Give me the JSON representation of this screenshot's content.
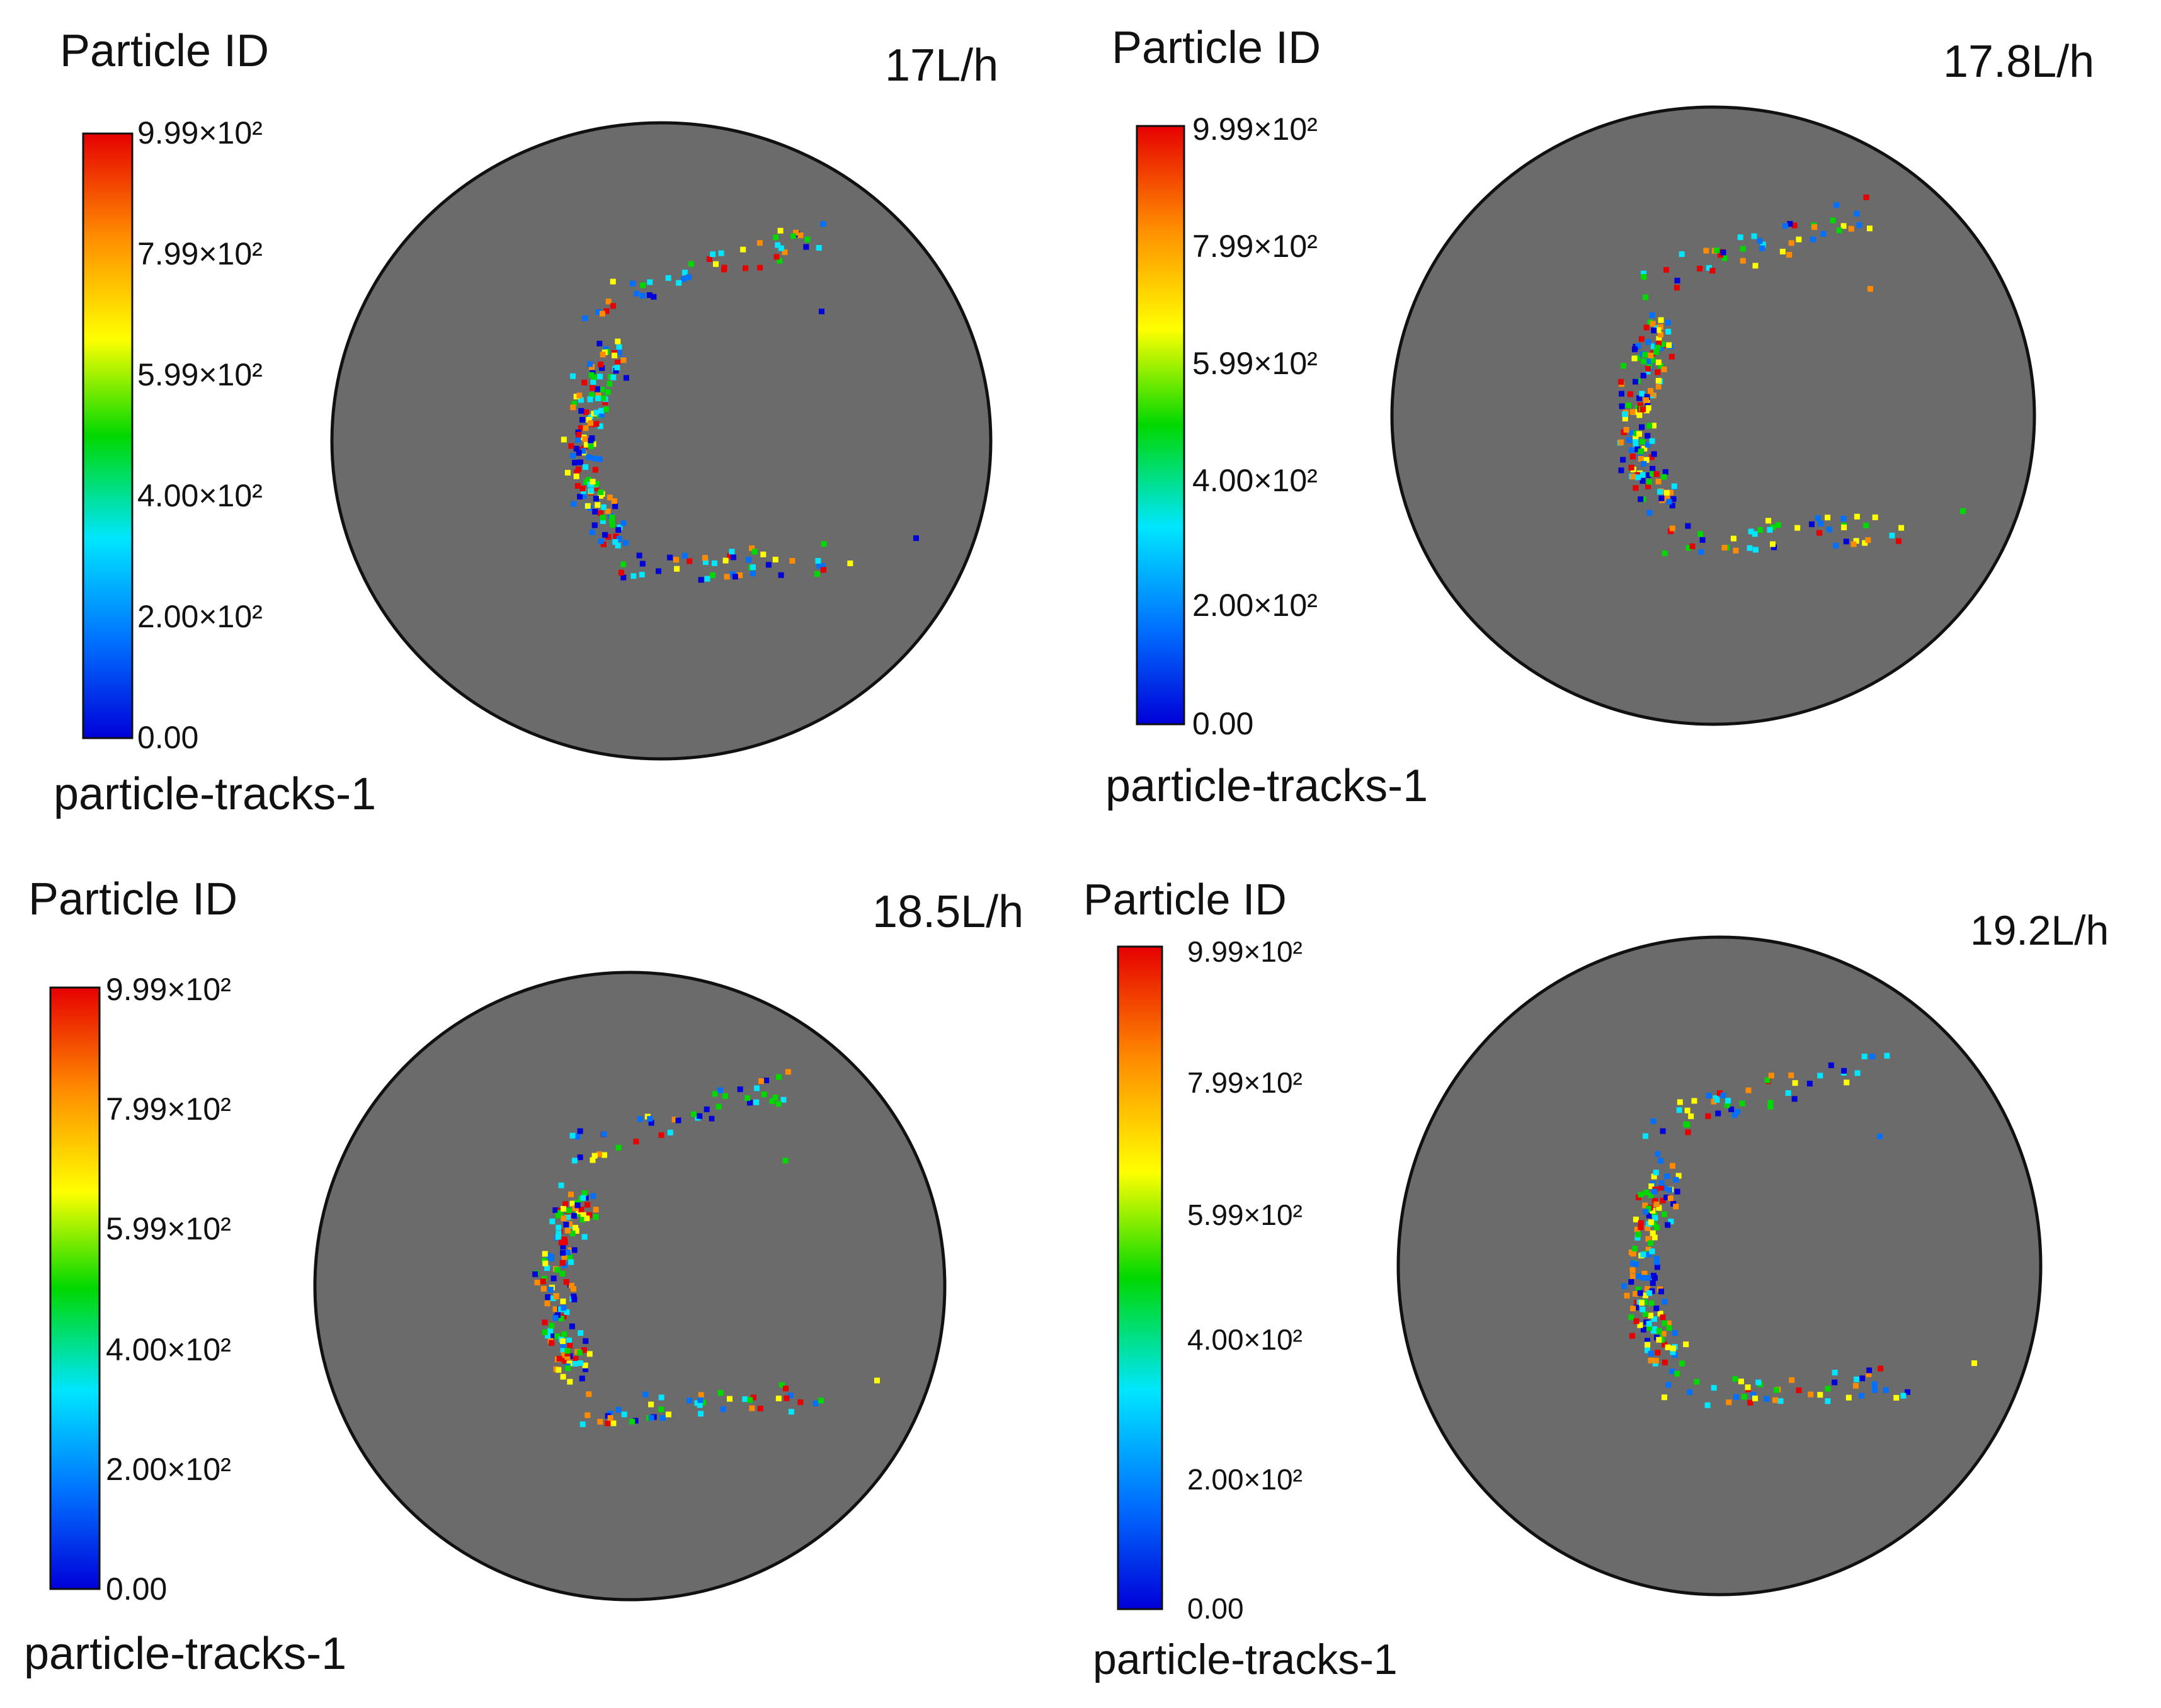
{
  "panels": [
    {
      "title": "Particle ID",
      "flow_label": "17L/h",
      "colorbar_ticks": [
        "9.99×10²",
        "7.99×10²",
        "5.99×10²",
        "4.00×10²",
        "2.00×10²",
        "0.00"
      ],
      "footer": "particle-tracks-1"
    },
    {
      "title": "Particle ID",
      "flow_label": "17.8L/h",
      "colorbar_ticks": [
        "9.99×10²",
        "7.99×10²",
        "5.99×10²",
        "4.00×10²",
        "2.00×10²",
        "0.00"
      ],
      "footer": "particle-tracks-1"
    },
    {
      "title": "Particle ID",
      "flow_label": "18.5L/h",
      "colorbar_ticks": [
        "9.99×10²",
        "7.99×10²",
        "5.99×10²",
        "4.00×10²",
        "2.00×10²",
        "0.00"
      ],
      "footer": "particle-tracks-1"
    },
    {
      "title": "Particle ID",
      "flow_label": "19.2L/h",
      "colorbar_ticks": [
        "9.99×10²",
        "7.99×10²",
        "5.99×10²",
        "4.00×10²",
        "2.00×10²",
        "0.00"
      ],
      "footer": "particle-tracks-1"
    }
  ],
  "colors": {
    "disc_fill": "#6b6b6b",
    "disc_stroke": "#111111",
    "colormap": [
      "#0000d8",
      "#0070ff",
      "#00e6ff",
      "#00d800",
      "#ffff00",
      "#ff8c00",
      "#e60000"
    ]
  }
}
